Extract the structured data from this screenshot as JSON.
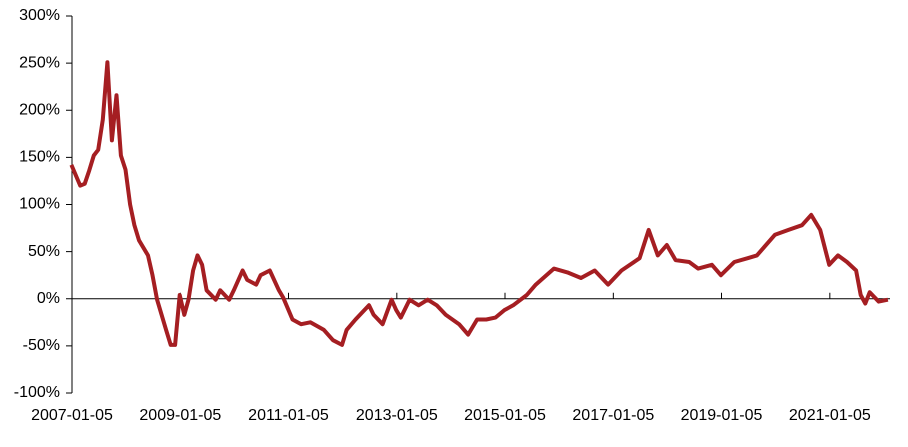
{
  "chart_data": {
    "type": "line",
    "x": [
      "2007-01-01",
      "2007-03-01",
      "2007-04-01",
      "2007-05-01",
      "2007-06-01",
      "2007-07-01",
      "2007-08-01",
      "2007-09-01",
      "2007-10-01",
      "2007-11-01",
      "2007-12-01",
      "2008-01-01",
      "2008-02-01",
      "2008-03-01",
      "2008-04-01",
      "2008-06-01",
      "2008-07-01",
      "2008-08-01",
      "2008-10-01",
      "2008-11-01",
      "2008-12-01",
      "2009-01-01",
      "2009-02-01",
      "2009-03-01",
      "2009-04-01",
      "2009-05-01",
      "2009-06-01",
      "2009-07-01",
      "2009-09-01",
      "2009-10-01",
      "2009-12-01",
      "2010-01-01",
      "2010-03-01",
      "2010-04-01",
      "2010-06-01",
      "2010-07-01",
      "2010-09-01",
      "2010-11-01",
      "2010-12-01",
      "2011-02-01",
      "2011-04-01",
      "2011-06-01",
      "2011-09-01",
      "2011-11-01",
      "2012-01-01",
      "2012-02-01",
      "2012-04-01",
      "2012-07-01",
      "2012-08-01",
      "2012-10-01",
      "2012-12-01",
      "2013-01-01",
      "2013-02-01",
      "2013-04-01",
      "2013-06-01",
      "2013-08-01",
      "2013-10-01",
      "2013-12-01",
      "2014-03-01",
      "2014-05-01",
      "2014-07-01",
      "2014-09-01",
      "2014-11-01",
      "2015-01-01",
      "2015-03-01",
      "2015-06-01",
      "2015-08-01",
      "2015-12-01",
      "2016-03-01",
      "2016-06-01",
      "2016-09-01",
      "2016-12-01",
      "2017-03-01",
      "2017-07-01",
      "2017-09-01",
      "2017-11-01",
      "2018-01-01",
      "2018-03-01",
      "2018-06-01",
      "2018-08-01",
      "2018-11-01",
      "2019-01-01",
      "2019-04-01",
      "2019-07-01",
      "2019-09-01",
      "2020-01-01",
      "2020-04-01",
      "2020-07-01",
      "2020-09-01",
      "2020-11-01",
      "2021-01-01",
      "2021-03-01",
      "2021-05-01",
      "2021-07-01",
      "2021-08-01",
      "2021-09-01",
      "2021-10-01",
      "2021-12-01",
      "2022-02-01"
    ],
    "series": [
      {
        "color": "#a51e22",
        "values": [
          142,
          120,
          122,
          136,
          152,
          158,
          190,
          251,
          168,
          216,
          152,
          137,
          100,
          78,
          62,
          46,
          25,
          -1,
          -33,
          -49,
          -49,
          4,
          -17,
          -1,
          30,
          46,
          36,
          9,
          -1,
          9,
          -1,
          9,
          30,
          20,
          15,
          25,
          30,
          9,
          1,
          -22,
          -27,
          -25,
          -33,
          -44,
          -49,
          -33,
          -22,
          -7,
          -17,
          -27,
          -1,
          -12,
          -20,
          -1,
          -7,
          -1,
          -7,
          -17,
          -27,
          -38,
          -22,
          -22,
          -20,
          -12,
          -7,
          4,
          15,
          32,
          28,
          22,
          30,
          15,
          30,
          43,
          73,
          46,
          57,
          41,
          39,
          32,
          36,
          25,
          39,
          43,
          46,
          68,
          73,
          78,
          89,
          73,
          36,
          46,
          39,
          30,
          4,
          -5,
          7,
          -3,
          -1
        ]
      }
    ],
    "xlim": [
      "2007-01-05",
      "2022-02-15"
    ],
    "xticks": [
      "2007-01-05",
      "2009-01-05",
      "2011-01-05",
      "2013-01-05",
      "2015-01-05",
      "2017-01-05",
      "2019-01-05",
      "2021-01-05"
    ],
    "ylim": [
      -100,
      300
    ],
    "yticks": [
      {
        "value": -100,
        "label": "-100%"
      },
      {
        "value": -50,
        "label": "-50%"
      },
      {
        "value": 0,
        "label": "0%"
      },
      {
        "value": 50,
        "label": "50%"
      },
      {
        "value": 100,
        "label": "100%"
      },
      {
        "value": 150,
        "label": "150%"
      },
      {
        "value": 200,
        "label": "200%"
      },
      {
        "value": 250,
        "label": "250%"
      },
      {
        "value": 300,
        "label": "300%"
      }
    ]
  }
}
